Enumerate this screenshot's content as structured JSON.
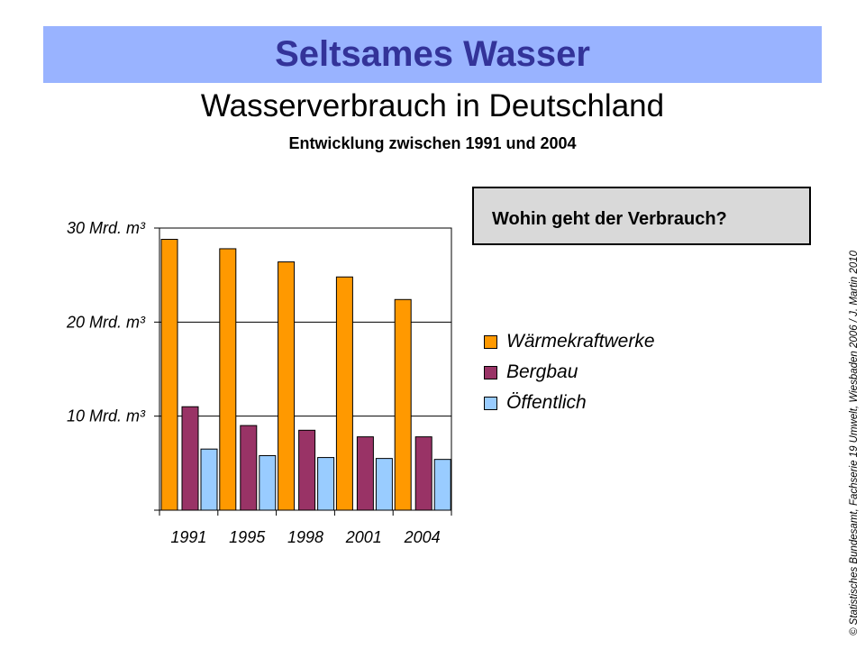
{
  "header": {
    "banner": "Seltsames Wasser"
  },
  "chart_data": {
    "type": "bar",
    "title": "Wasserverbrauch in Deutschland",
    "subtitle": "Entwicklung zwischen 1991 und 2004",
    "categories": [
      "1991",
      "1995",
      "1998",
      "2001",
      "2004"
    ],
    "series": [
      {
        "name": "Wärmekraftwerke",
        "color": "#ff9900",
        "values": [
          28.8,
          27.8,
          26.4,
          24.8,
          22.4
        ]
      },
      {
        "name": "Bergbau",
        "color": "#993366",
        "values": [
          11.0,
          9.0,
          8.5,
          7.8,
          7.8
        ]
      },
      {
        "name": "Öffentlich",
        "color": "#99ccff",
        "values": [
          6.5,
          5.8,
          5.6,
          5.5,
          5.4
        ]
      }
    ],
    "ylim": [
      0,
      30
    ],
    "yticks": [
      10,
      20,
      30
    ],
    "ytick_labels": [
      "10 Mrd. m³",
      "20 Mrd. m³",
      "30 Mrd. m³"
    ],
    "grid": true,
    "legend_position": "right"
  },
  "callout": {
    "text": "Wohin geht der Verbrauch?"
  },
  "credit": "© Statistisches Bundesamt, Fachserie 19 Umwelt, Wiesbaden 2006 / J. Martin 2010"
}
